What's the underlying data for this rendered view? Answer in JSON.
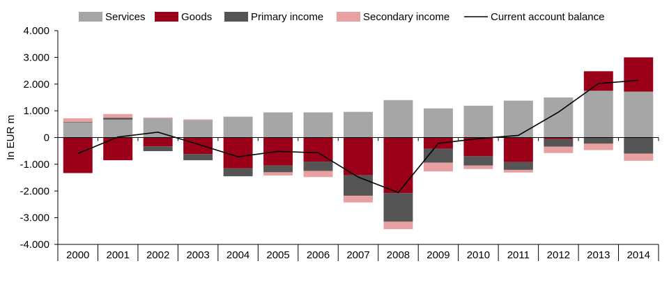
{
  "chart_data": {
    "type": "bar",
    "stacked": true,
    "ylabel": "In EUR m",
    "ylim": [
      -4000,
      4000
    ],
    "yticks": [
      -4000,
      -3000,
      -2000,
      -1000,
      0,
      1000,
      2000,
      3000,
      4000
    ],
    "ytick_labels": [
      "-4.000",
      "-3.000",
      "-2.000",
      "-1.000",
      "0",
      "1.000",
      "2.000",
      "3.000",
      "4.000"
    ],
    "categories": [
      "2000",
      "2001",
      "2002",
      "2003",
      "2004",
      "2005",
      "2006",
      "2007",
      "2008",
      "2009",
      "2010",
      "2011",
      "2012",
      "2013",
      "2014"
    ],
    "legend_position": "top",
    "grid": false,
    "series": [
      {
        "name": "Services",
        "type": "bar",
        "color": "#a6a6a6",
        "values": [
          570,
          670,
          720,
          650,
          780,
          940,
          940,
          960,
          1400,
          1090,
          1190,
          1380,
          1500,
          1750,
          1720
        ]
      },
      {
        "name": "Goods",
        "type": "bar",
        "color": "#9b0019",
        "values": [
          -1330,
          -850,
          -330,
          -620,
          -1150,
          -1050,
          -900,
          -1410,
          -2080,
          -420,
          -700,
          -920,
          -60,
          730,
          1280
        ]
      },
      {
        "name": "Primary income",
        "type": "bar",
        "color": "#555555",
        "values": [
          20,
          70,
          -180,
          -230,
          -300,
          -250,
          -350,
          -770,
          -1070,
          -520,
          -350,
          -290,
          -280,
          -230,
          -600
        ]
      },
      {
        "name": "Secondary income",
        "type": "bar",
        "color": "#e8a0a0",
        "values": [
          130,
          140,
          30,
          30,
          0,
          -120,
          -230,
          -250,
          -280,
          -330,
          -130,
          -100,
          -240,
          -240,
          -270
        ]
      },
      {
        "name": "Current account balance",
        "type": "line",
        "color": "#000000",
        "values": [
          -600,
          20,
          200,
          -250,
          -720,
          -520,
          -570,
          -1480,
          -2060,
          -220,
          -40,
          80,
          950,
          2020,
          2140
        ]
      }
    ]
  }
}
